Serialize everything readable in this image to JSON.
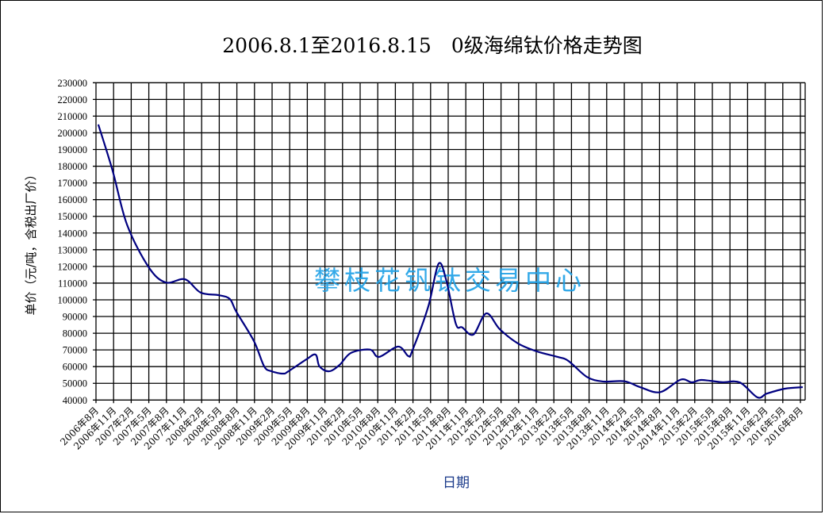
{
  "chart_data": {
    "type": "line",
    "title": "2006.8.1至2016.8.15　0级海绵钛价格走势图",
    "xlabel": "日期",
    "ylabel": "单价（元/吨，含税出厂价）",
    "watermark": "攀枝花钒钛交易中心",
    "ylim": [
      40000,
      230000
    ],
    "ystep": 10000,
    "xlim": [
      "2006-08-01",
      "2016-08-01"
    ],
    "grid": true,
    "legend": "none",
    "x_tick_labels": [
      "2006年8月",
      "2006年11月",
      "2007年2月",
      "2007年5月",
      "2007年8月",
      "2007年11月",
      "2008年2月",
      "2008年5月",
      "2008年8月",
      "2008年11月",
      "2009年2月",
      "2009年5月",
      "2009年8月",
      "2009年11月",
      "2010年2月",
      "2010年5月",
      "2010年8月",
      "2010年11月",
      "2011年2月",
      "2011年5月",
      "2011年8月",
      "2011年11月",
      "2012年2月",
      "2012年5月",
      "2012年8月",
      "2012年11月",
      "2013年2月",
      "2013年5月",
      "2013年8月",
      "2013年11月",
      "2014年2月",
      "2014年5月",
      "2014年8月",
      "2014年11月",
      "2015年2月",
      "2015年5月",
      "2015年8月",
      "2015年11月",
      "2016年2月",
      "2016年5月",
      "2016年8月"
    ],
    "y_tick_labels": [
      "40000",
      "50000",
      "60000",
      "70000",
      "80000",
      "90000",
      "100000",
      "110000",
      "120000",
      "130000",
      "140000",
      "150000",
      "160000",
      "170000",
      "180000",
      "190000",
      "200000",
      "210000",
      "220000",
      "230000"
    ],
    "colors": {
      "line": "#000080",
      "grid": "#000000",
      "watermark": "#1ea0e6"
    },
    "series": [
      {
        "points": [
          [
            "2006-08-13",
            205000
          ],
          [
            "2006-10-26",
            177400
          ],
          [
            "2007-01-09",
            145000
          ],
          [
            "2007-05-01",
            119600
          ],
          [
            "2007-07-28",
            110400
          ],
          [
            "2007-11-05",
            112300
          ],
          [
            "2008-01-26",
            104300
          ],
          [
            "2008-04-28",
            102800
          ],
          [
            "2008-06-25",
            100500
          ],
          [
            "2008-07-28",
            93000
          ],
          [
            "2008-10-28",
            75300
          ],
          [
            "2008-12-20",
            60200
          ],
          [
            "2009-01-28",
            57200
          ],
          [
            "2009-03-28",
            55800
          ],
          [
            "2009-04-25",
            57200
          ],
          [
            "2009-07-28",
            64400
          ],
          [
            "2009-09-13",
            67200
          ],
          [
            "2009-10-03",
            60100
          ],
          [
            "2009-11-22",
            57200
          ],
          [
            "2010-01-15",
            61000
          ],
          [
            "2010-03-15",
            68200
          ],
          [
            "2010-06-22",
            70200
          ],
          [
            "2010-08-07",
            65800
          ],
          [
            "2010-11-15",
            72000
          ],
          [
            "2011-01-07",
            66300
          ],
          [
            "2011-01-28",
            69700
          ],
          [
            "2011-04-20",
            95900
          ],
          [
            "2011-06-12",
            121500
          ],
          [
            "2011-07-22",
            111900
          ],
          [
            "2011-09-10",
            85700
          ],
          [
            "2011-10-13",
            83500
          ],
          [
            "2011-12-10",
            79200
          ],
          [
            "2012-02-15",
            91900
          ],
          [
            "2012-04-25",
            82400
          ],
          [
            "2012-07-28",
            73900
          ],
          [
            "2012-11-04",
            69100
          ],
          [
            "2013-02-19",
            65800
          ],
          [
            "2013-04-16",
            63400
          ],
          [
            "2013-07-20",
            53900
          ],
          [
            "2013-10-10",
            51100
          ],
          [
            "2014-02-01",
            51200
          ],
          [
            "2014-04-25",
            47600
          ],
          [
            "2014-08-04",
            44700
          ],
          [
            "2014-11-19",
            52200
          ],
          [
            "2015-01-16",
            50600
          ],
          [
            "2015-03-07",
            52000
          ],
          [
            "2015-06-19",
            50700
          ],
          [
            "2015-09-22",
            50500
          ],
          [
            "2015-12-22",
            41600
          ],
          [
            "2016-02-10",
            43900
          ],
          [
            "2016-05-13",
            46800
          ],
          [
            "2016-08-13",
            47700
          ]
        ]
      }
    ]
  }
}
